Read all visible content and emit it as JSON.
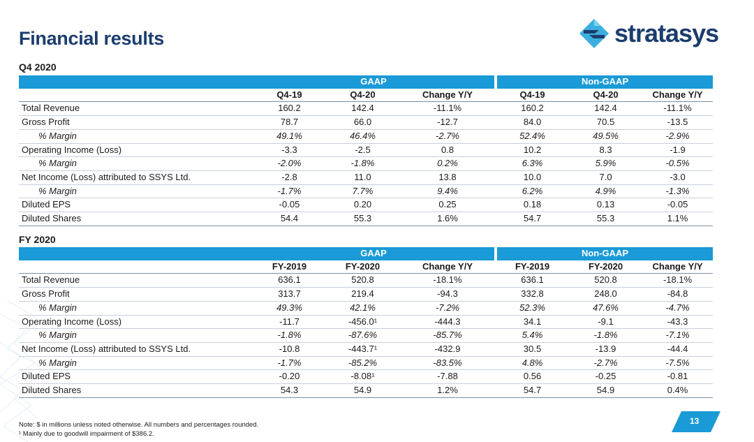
{
  "slide": {
    "title": "Financial results",
    "logo_text": "stratasys",
    "page_number": "13",
    "notes": [
      "Note: $ in millions unless noted otherwise. All numbers and percentages rounded.",
      "¹ Mainly due to goodwill impairment of $386.2."
    ]
  },
  "q4": {
    "section_label": "Q4 2020",
    "gaap_label": "GAAP",
    "nongaap_label": "Non-GAAP",
    "columns": [
      "Q4-19",
      "Q4-20",
      "Change Y/Y",
      "Q4-19",
      "Q4-20",
      "Change Y/Y"
    ],
    "rows": [
      {
        "label": "Total Revenue",
        "italic": false,
        "values": [
          "160.2",
          "142.4",
          "-11.1%",
          "160.2",
          "142.4",
          "-11.1%"
        ]
      },
      {
        "label": "Gross Profit",
        "italic": false,
        "values": [
          "78.7",
          "66.0",
          "-12.7",
          "84.0",
          "70.5",
          "-13.5"
        ]
      },
      {
        "label": "% Margin",
        "italic": true,
        "values": [
          "49.1%",
          "46.4%",
          "-2.7%",
          "52.4%",
          "49.5%",
          "-2.9%"
        ]
      },
      {
        "label": "Operating Income (Loss)",
        "italic": false,
        "values": [
          "-3.3",
          "-2.5",
          "0.8",
          "10.2",
          "8.3",
          "-1.9"
        ]
      },
      {
        "label": "% Margin",
        "italic": true,
        "values": [
          "-2.0%",
          "-1.8%",
          "0.2%",
          "6.3%",
          "5.9%",
          "-0.5%"
        ]
      },
      {
        "label": "Net Income (Loss) attributed to SSYS Ltd.",
        "italic": false,
        "values": [
          "-2.8",
          "11.0",
          "13.8",
          "10.0",
          "7.0",
          "-3.0"
        ]
      },
      {
        "label": "% Margin",
        "italic": true,
        "values": [
          "-1.7%",
          "7.7%",
          "9.4%",
          "6.2%",
          "4.9%",
          "-1.3%"
        ]
      },
      {
        "label": "Diluted EPS",
        "italic": false,
        "values": [
          "-0.05",
          "0.20",
          "0.25",
          "0.18",
          "0.13",
          "-0.05"
        ]
      },
      {
        "label": "Diluted Shares",
        "italic": false,
        "values": [
          "54.4",
          "55.3",
          "1.6%",
          "54.7",
          "55.3",
          "1.1%"
        ]
      }
    ]
  },
  "fy": {
    "section_label": "FY 2020",
    "gaap_label": "GAAP",
    "nongaap_label": "Non-GAAP",
    "columns": [
      "FY-2019",
      "FY-2020",
      "Change Y/Y",
      "FY-2019",
      "FY-2020",
      "Change Y/Y"
    ],
    "rows": [
      {
        "label": "Total Revenue",
        "italic": false,
        "values": [
          "636.1",
          "520.8",
          "-18.1%",
          "636.1",
          "520.8",
          "-18.1%"
        ]
      },
      {
        "label": "Gross Profit",
        "italic": false,
        "values": [
          "313.7",
          "219.4",
          "-94.3",
          "332.8",
          "248.0",
          "-84.8"
        ]
      },
      {
        "label": "% Margin",
        "italic": true,
        "values": [
          "49.3%",
          "42.1%",
          "-7.2%",
          "52.3%",
          "47.6%",
          "-4.7%"
        ]
      },
      {
        "label": "Operating Income (Loss)",
        "italic": false,
        "values": [
          "-11.7",
          "-456.0¹",
          "-444.3",
          "34.1",
          "-9.1",
          "-43.3"
        ]
      },
      {
        "label": "% Margin",
        "italic": true,
        "values": [
          "-1.8%",
          "-87.6%",
          "-85.7%",
          "5.4%",
          "-1.8%",
          "-7.1%"
        ]
      },
      {
        "label": "Net Income (Loss) attributed to SSYS Ltd.",
        "italic": false,
        "values": [
          "-10.8",
          "-443.7¹",
          "-432.9",
          "30.5",
          "-13.9",
          "-44.4"
        ]
      },
      {
        "label": "% Margin",
        "italic": true,
        "values": [
          "-1.7%",
          "-85.2%",
          "-83.5%",
          "4.8%",
          "-2.7%",
          "-7.5%"
        ]
      },
      {
        "label": "Diluted EPS",
        "italic": false,
        "values": [
          "-0.20",
          "-8.08¹",
          "-7.88",
          "0.56",
          "-0.25",
          "-0.81"
        ]
      },
      {
        "label": "Diluted Shares",
        "italic": false,
        "values": [
          "54.3",
          "54.9",
          "1.2%",
          "54.7",
          "54.9",
          "0.4%"
        ]
      }
    ]
  },
  "colors": {
    "header_band": "#1a9ad6",
    "title": "#1c3d6e",
    "logo_mark_light": "#3bb0e0",
    "logo_mark_dark": "#1c3d6e"
  }
}
